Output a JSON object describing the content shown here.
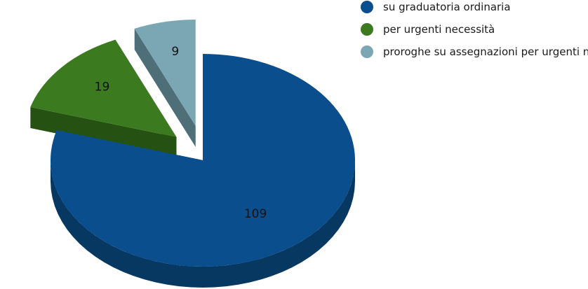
{
  "chart_data": {
    "type": "pie",
    "title": "",
    "legend_position": "top-right",
    "categories": [
      "su graduatoria ordinaria",
      "per urgenti necessità",
      "proroghe su assegnazioni per urgenti n"
    ],
    "values": [
      109,
      19,
      9
    ],
    "colors": [
      "#0b4e8d",
      "#3b7a1e",
      "#7ba7b5"
    ],
    "side_colors": [
      "#073862",
      "#255212",
      "#4e6e78"
    ],
    "exploded": [
      false,
      true,
      true
    ]
  }
}
